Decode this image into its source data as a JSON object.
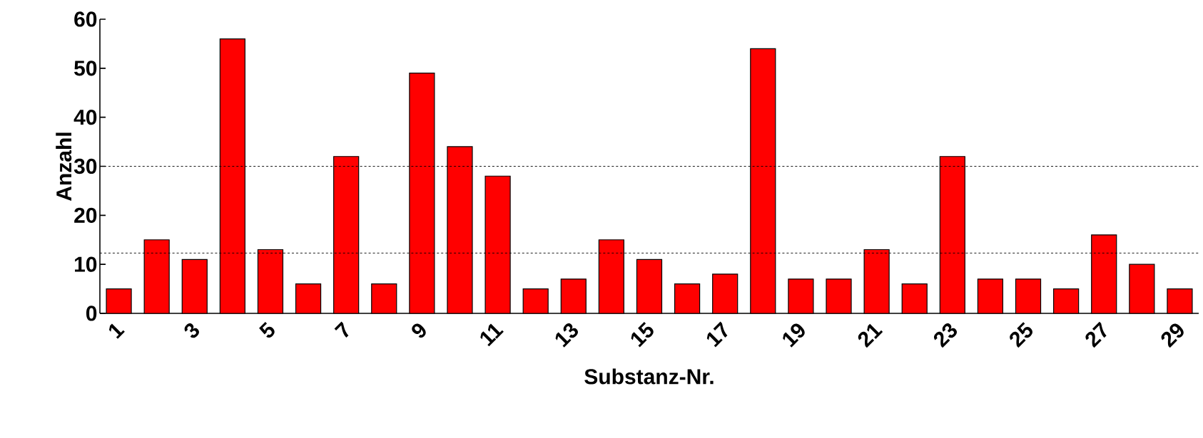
{
  "chart_data": {
    "type": "bar",
    "xlabel": "Substanz-Nr.",
    "ylabel": "Anzahl",
    "categories": [
      "1",
      null,
      "3",
      null,
      "5",
      null,
      "7",
      null,
      "9",
      null,
      "11",
      null,
      "13",
      null,
      "15",
      null,
      "17",
      null,
      "19",
      null,
      "21",
      null,
      "23",
      null,
      "25",
      null,
      "27",
      null,
      "29"
    ],
    "values": [
      5,
      15,
      11,
      56,
      13,
      6,
      32,
      6,
      49,
      34,
      28,
      5,
      7,
      15,
      11,
      6,
      8,
      54,
      7,
      7,
      13,
      6,
      32,
      7,
      7,
      5,
      16,
      10,
      5
    ],
    "color": "#ff0000",
    "ylim": [
      0,
      60
    ],
    "yticks": [
      0,
      10,
      20,
      30,
      40,
      50,
      60
    ],
    "grid": false,
    "ref_lines": [
      {
        "axis": "y",
        "value": 30,
        "line_style": "dashed",
        "color": "#000000"
      },
      {
        "axis": "y",
        "value": 12.3,
        "line_style": "dashed",
        "color": "#000000"
      }
    ]
  }
}
